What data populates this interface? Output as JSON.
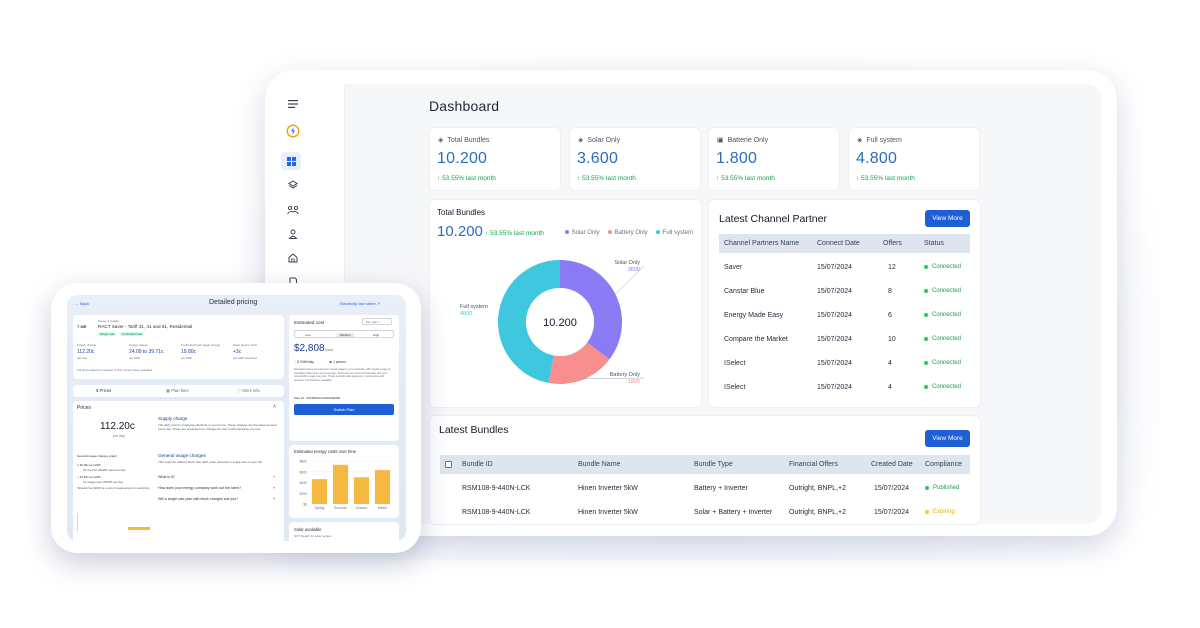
{
  "dashboard": {
    "title": "Dashboard",
    "kpis": [
      {
        "label": "Total Bundles",
        "value": "10.200",
        "change": "53.55% last month",
        "icon": "layers-icon"
      },
      {
        "label": "Solar Only",
        "value": "3.600",
        "change": "53.55% last month",
        "icon": "layers-icon"
      },
      {
        "label": "Batterie Only",
        "value": "1.800",
        "change": "53.55% last month",
        "icon": "battery-icon"
      },
      {
        "label": "Full system",
        "value": "4.800",
        "change": "53.55% last month",
        "icon": "layers-icon"
      }
    ],
    "total_bundles_card": {
      "title": "Total Bundles",
      "value": "10.200",
      "change": "53.55% last month",
      "legend": [
        "Solar Only",
        "Battery Only",
        "Full system"
      ]
    },
    "channel_partner": {
      "title": "Latest Channel Partner",
      "view_more": "View More",
      "columns": [
        "Channel Partners Name",
        "Connect Date",
        "Offers",
        "Status"
      ],
      "rows": [
        {
          "name": "Saver",
          "date": "15/07/2024",
          "offers": "12",
          "status": "Connected"
        },
        {
          "name": "Canstar Blue",
          "date": "15/07/2024",
          "offers": "8",
          "status": "Connected"
        },
        {
          "name": "Energy Made Easy",
          "date": "15/07/2024",
          "offers": "6",
          "status": "Connected"
        },
        {
          "name": "Compare the Market",
          "date": "15/07/2024",
          "offers": "10",
          "status": "Connected"
        },
        {
          "name": "ISelect",
          "date": "15/07/2024",
          "offers": "4",
          "status": "Connected"
        },
        {
          "name": "ISelect",
          "date": "15/07/2024",
          "offers": "4",
          "status": "Connected"
        }
      ]
    },
    "latest_bundles": {
      "title": "Latest Bundles",
      "view_more": "View More",
      "columns": [
        "Bundle ID",
        "Bundle Name",
        "Bundle Type",
        "Financial Offers",
        "Created Date",
        "Compliance"
      ],
      "rows": [
        {
          "id": "RSM108-9-440N-LCK",
          "name": "Hinen Inverter 5kW",
          "type": "Battery + Inverter",
          "offers": "Outright, BNPL,+2",
          "date": "15/07/2024",
          "compliance": "Published"
        },
        {
          "id": "RSM108-9-440N-LCK",
          "name": "Hinen Inverter 5kW",
          "type": "Solar + Battery + Inverter",
          "offers": "Outright, BNPL,+2",
          "date": "15/07/2024",
          "compliance": "Expiring"
        }
      ]
    },
    "colors": {
      "solar": "#8b7cf6",
      "battery": "#f78f8f",
      "full": "#3ec7df",
      "primary": "#1e5fd6",
      "value": "#2a6fbd",
      "green": "#16a34a",
      "amber": "#facc15"
    }
  },
  "chart_data": {
    "type": "pie",
    "title": "Total Bundles",
    "center_label": "10.200",
    "categories": [
      "Solar Only",
      "Battery Only",
      "Full system"
    ],
    "values": [
      3600,
      1800,
      4800
    ],
    "labels": [
      "3600",
      "1800",
      "4800"
    ]
  },
  "pricing": {
    "back": "Back",
    "title": "Detailed pricing",
    "fact_sheet": "Electricity fact sheet",
    "retailer_label": "Name of retailer",
    "retailer": "RACT Saver - Tariff 31, 41 and 61, Residential",
    "retailer_logo": "T ME",
    "tags": [
      "Single rate",
      "Controlled load"
    ],
    "metrics": [
      {
        "label": "Supply charge",
        "value": "112.20c",
        "sub": "per day"
      },
      {
        "label": "Usage charge",
        "value": "24.09 to 39.71c",
        "sub": "per kWh"
      },
      {
        "label": "Controlled load usage charge",
        "value": "19.80c",
        "sub": "per kWh"
      },
      {
        "label": "Solar feed-in tariff",
        "value": "+3c",
        "sub": "per kWh exported"
      }
    ],
    "gst_note": "*All prices listed are inclusive of GST except where indicated.",
    "tabs": [
      "Prices",
      "Plan fees",
      "More info"
    ],
    "prices_heading": "Prices",
    "big_price": "112.20c",
    "big_price_sub": "per day",
    "supply_heading": "Supply charge",
    "supply_text": "The daily cost for supplying electricity to your home. These charges are the same amount every day. These are separate from charges for how much electricity you use.",
    "usage_heading": "General usage charges",
    "usage_text": "This might be called a block rate tariff, peak, demand or single rate on your bill.",
    "graph_label": "General usage charges graph",
    "rate1": "30.36c per kWh",
    "rate1_sub": "for the first 25kWh used per day",
    "rate2": "32.56c per kWh",
    "rate2_sub": "for usage over 25kWh per day",
    "kwh_note": "*kilowatt hour(kWh) is a unit of measurement for electricity.",
    "faq": [
      "What is it?",
      "How does your energy company work out the rates?",
      "Will a single rate plan with block charges suit you?"
    ],
    "estimated_cost": "Estimated cost",
    "period": "Per year",
    "usage_levels": [
      "Low",
      "Medium",
      "High"
    ],
    "cost": "$2,808",
    "cost_sub": "/year",
    "usage_kwh": "8.7kWh/day",
    "people": "1 person",
    "est_note": "Estimated prices are based on typical usage in your postcode, with regular usage on weekdays (afternoons and evenings). Prices are not personal estimates and your household's usage may vary. Prices exclude solar payments, concessions and bonuses, but discounts available.",
    "plan_id": "Plan ID : ZON500SCSAR019EINE",
    "switch": "Switch Plan",
    "energy_chart_title": "Estimated energy costs over time",
    "solar_title": "Solar available",
    "solar_text": "NOT Ready for solar system"
  },
  "energy_chart": {
    "type": "bar",
    "categories": [
      "Spring",
      "Summer",
      "Autumn",
      "Winter"
    ],
    "values": [
      520,
      820,
      560,
      710
    ],
    "ticks": [
      "$800",
      "$600",
      "$400",
      "$200",
      "$0"
    ],
    "ylim": [
      0,
      900
    ]
  }
}
